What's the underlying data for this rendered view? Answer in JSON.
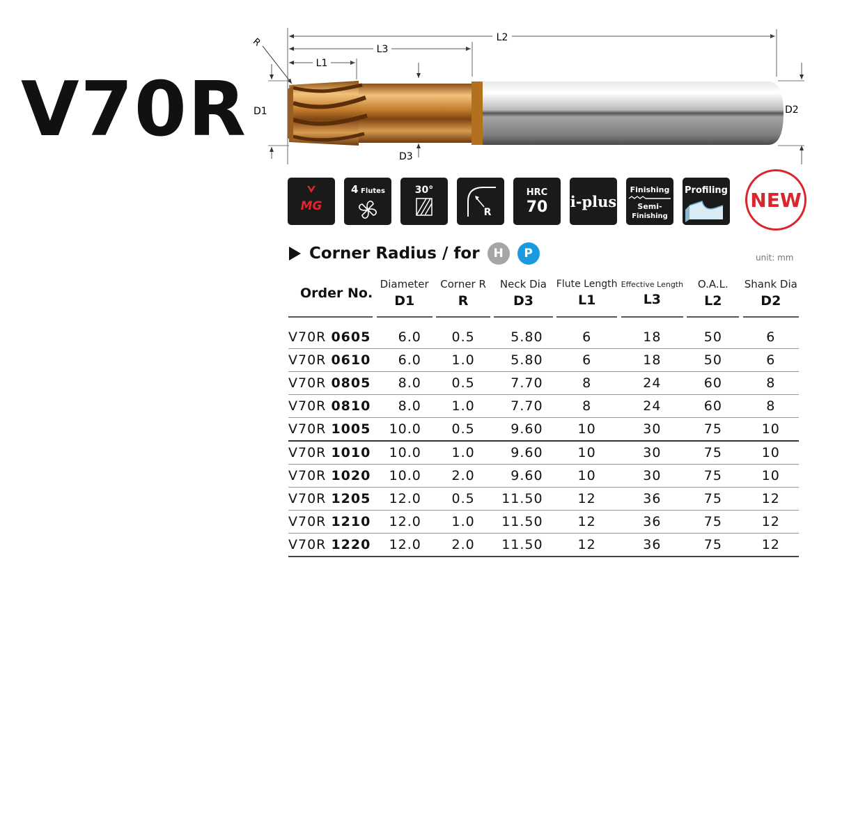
{
  "title": "V70R",
  "drawing": {
    "labels": {
      "l2": "L2",
      "l3": "L3",
      "l1": "L1",
      "r": "R",
      "d1": "D1",
      "d2": "D2",
      "d3": "D3"
    }
  },
  "icons": [
    {
      "name": "mg-icon",
      "text": "MG"
    },
    {
      "name": "four-flutes-icon",
      "num": "4",
      "text": "Flutes"
    },
    {
      "name": "helix-30-icon",
      "text": "30°"
    },
    {
      "name": "corner-radius-icon",
      "text": "R"
    },
    {
      "name": "hrc70-icon",
      "top": "HRC",
      "num": "70"
    },
    {
      "name": "i-plus-icon",
      "text": "i-plus"
    },
    {
      "name": "finishing-icon",
      "top": "Finishing",
      "mid": "Semi-",
      "bottom": "Finishing"
    },
    {
      "name": "profiling-icon",
      "text": "Profiling"
    }
  ],
  "badge": "NEW",
  "colors": {
    "accent_red": "#d7262d",
    "h_badge": "#a6a6a6",
    "p_badge": "#1a9be0",
    "coating": "#c88a3a"
  },
  "section": {
    "title": "Corner Radius / for",
    "badges": [
      "H",
      "P"
    ]
  },
  "unit": "unit: mm",
  "table": {
    "order_header": "Order No.",
    "columns": [
      {
        "label": "Diameter",
        "symbol": "D1"
      },
      {
        "label": "Corner R",
        "symbol": "R"
      },
      {
        "label": "Neck Dia",
        "symbol": "D3"
      },
      {
        "label": "Flute Length",
        "symbol": "L1"
      },
      {
        "label": "Effective Length",
        "symbol": "L3"
      },
      {
        "label": "O.A.L.",
        "symbol": "L2"
      },
      {
        "label": "Shank Dia",
        "symbol": "D2"
      }
    ],
    "rows": [
      {
        "prefix": "V70R",
        "code": "0605",
        "vals": [
          "6.0",
          "0.5",
          "5.80",
          "6",
          "18",
          "50",
          "6"
        ]
      },
      {
        "prefix": "V70R",
        "code": "0610",
        "vals": [
          "6.0",
          "1.0",
          "5.80",
          "6",
          "18",
          "50",
          "6"
        ]
      },
      {
        "prefix": "V70R",
        "code": "0805",
        "vals": [
          "8.0",
          "0.5",
          "7.70",
          "8",
          "24",
          "60",
          "8"
        ]
      },
      {
        "prefix": "V70R",
        "code": "0810",
        "vals": [
          "8.0",
          "1.0",
          "7.70",
          "8",
          "24",
          "60",
          "8"
        ]
      },
      {
        "prefix": "V70R",
        "code": "1005",
        "vals": [
          "10.0",
          "0.5",
          "9.60",
          "10",
          "30",
          "75",
          "10"
        ]
      },
      {
        "prefix": "V70R",
        "code": "1010",
        "vals": [
          "10.0",
          "1.0",
          "9.60",
          "10",
          "30",
          "75",
          "10"
        ]
      },
      {
        "prefix": "V70R",
        "code": "1020",
        "vals": [
          "10.0",
          "2.0",
          "9.60",
          "10",
          "30",
          "75",
          "10"
        ]
      },
      {
        "prefix": "V70R",
        "code": "1205",
        "vals": [
          "12.0",
          "0.5",
          "11.50",
          "12",
          "36",
          "75",
          "12"
        ]
      },
      {
        "prefix": "V70R",
        "code": "1210",
        "vals": [
          "12.0",
          "1.0",
          "11.50",
          "12",
          "36",
          "75",
          "12"
        ]
      },
      {
        "prefix": "V70R",
        "code": "1220",
        "vals": [
          "12.0",
          "2.0",
          "11.50",
          "12",
          "36",
          "75",
          "12"
        ]
      }
    ]
  }
}
